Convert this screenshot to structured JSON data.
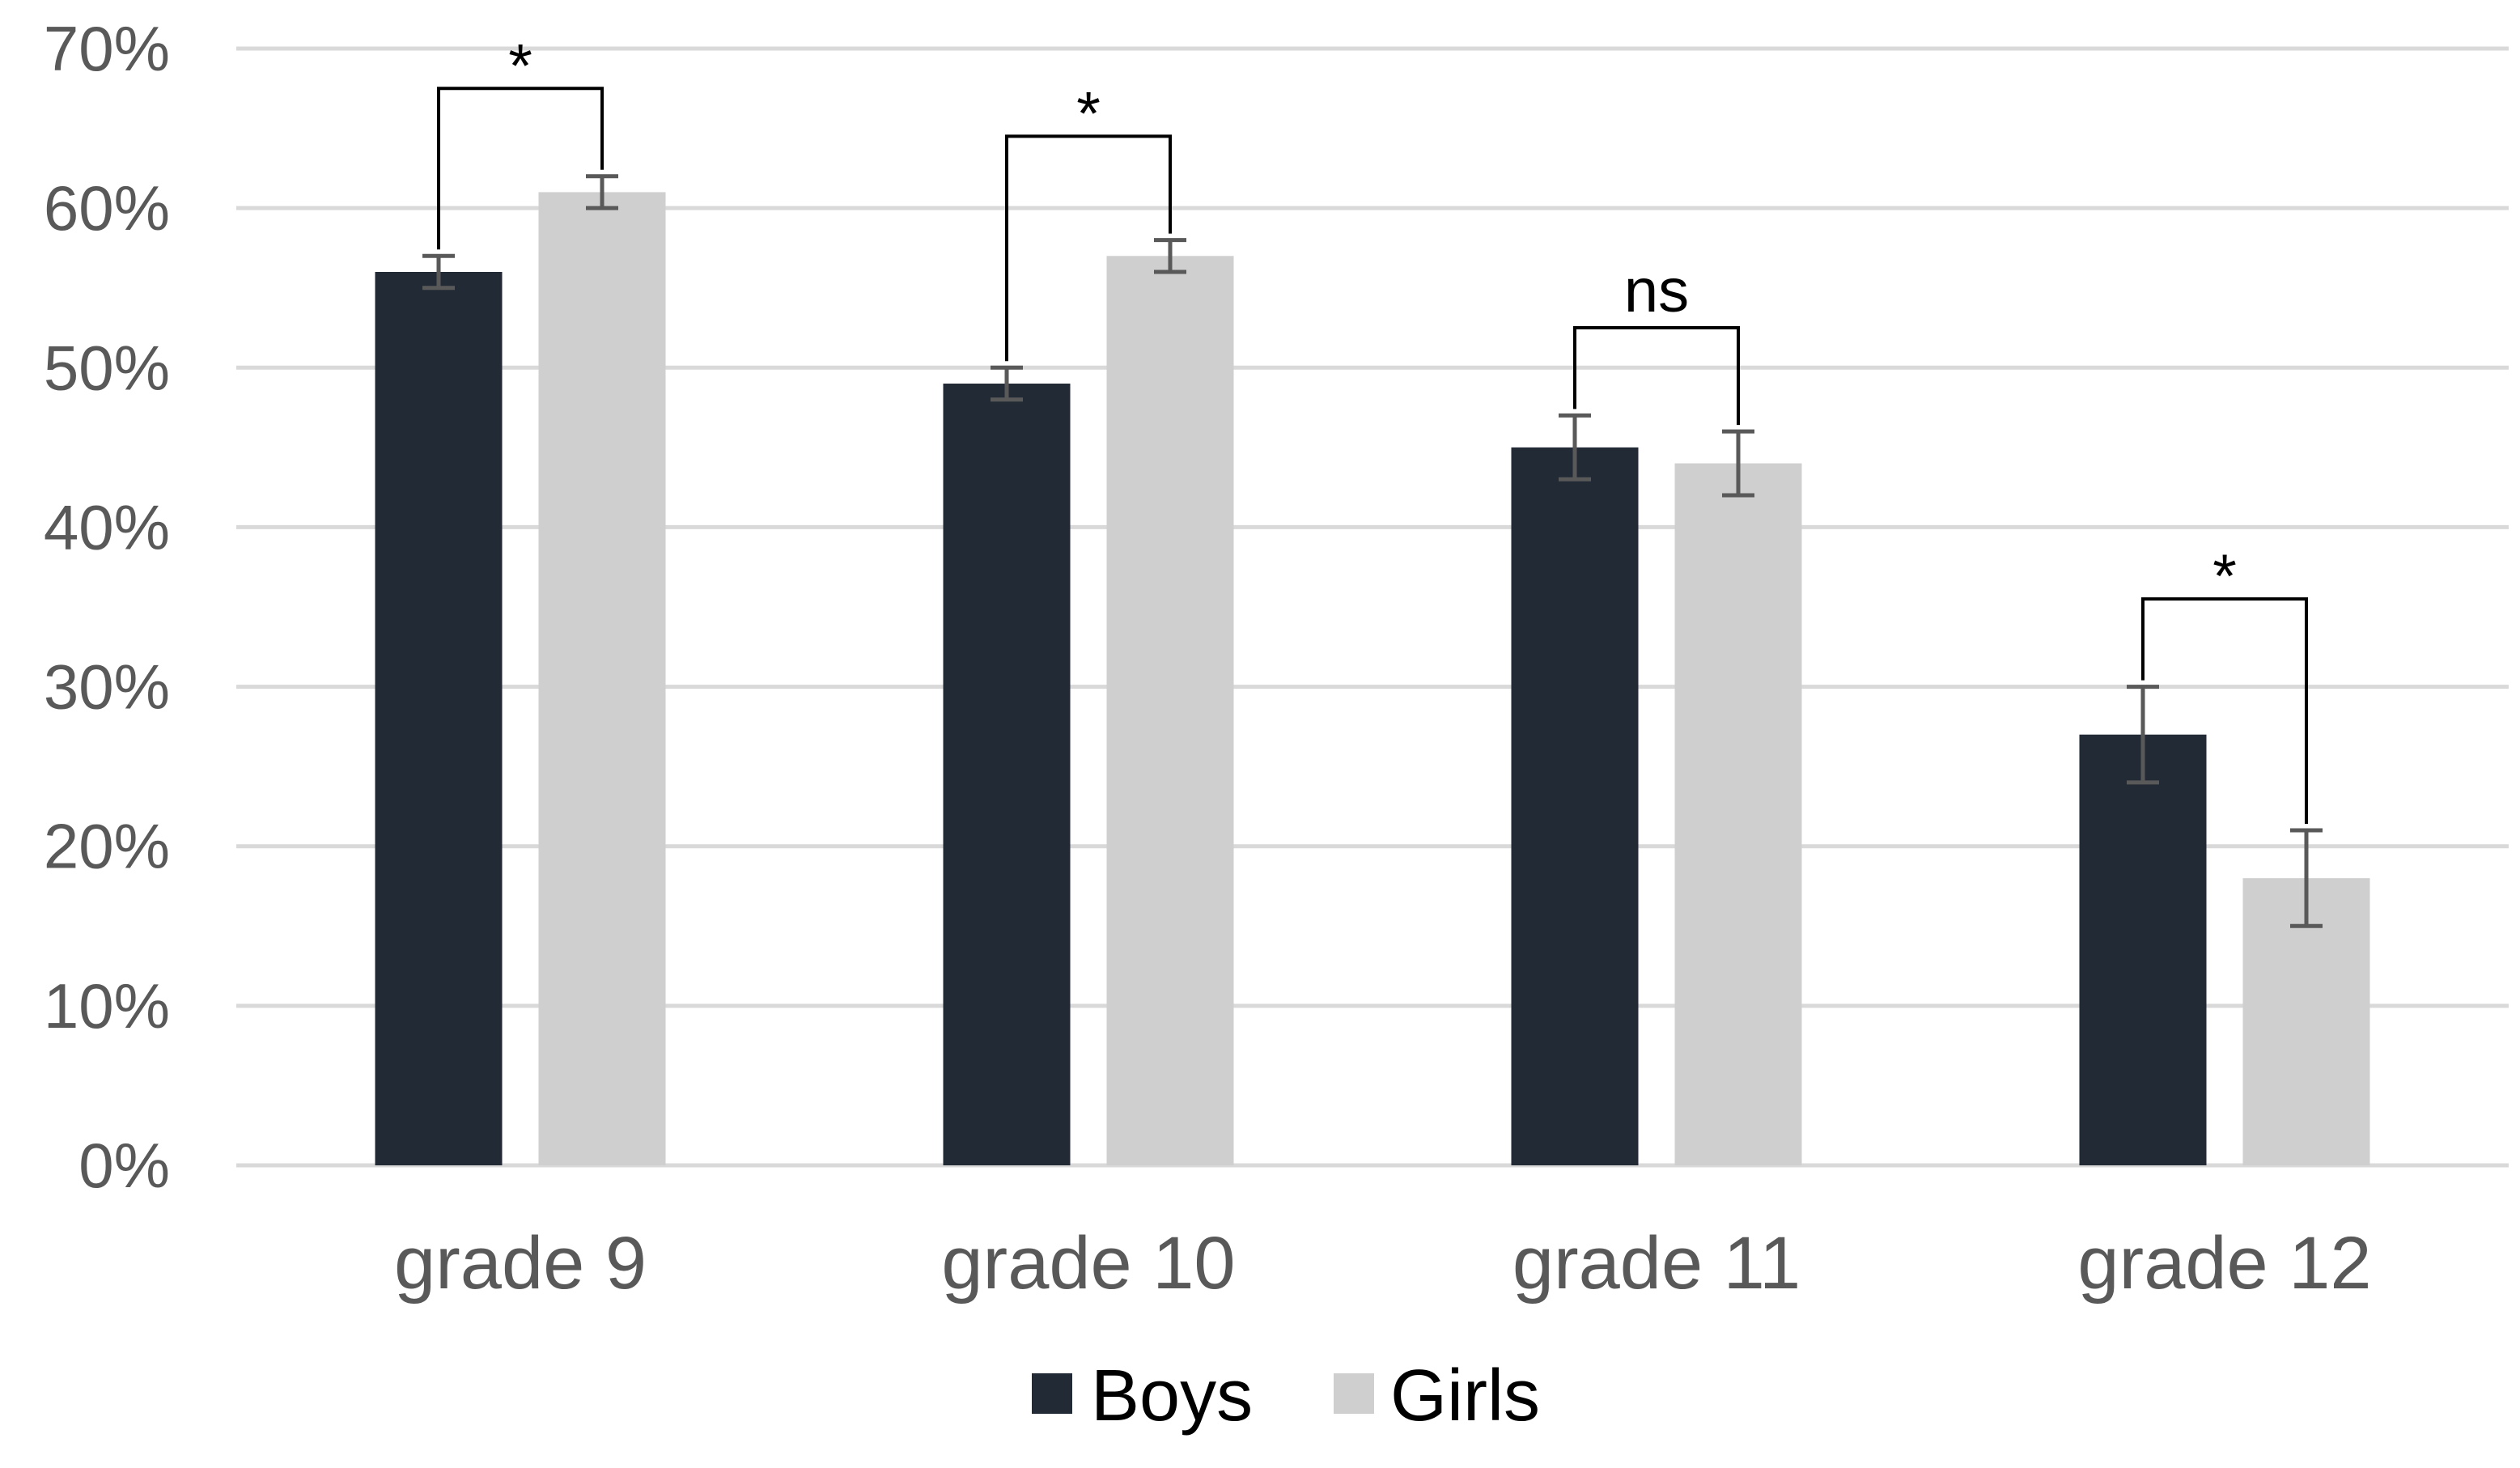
{
  "chart_data": {
    "type": "bar",
    "title": "",
    "xlabel": "",
    "ylabel": "",
    "ylim": [
      0,
      0.7
    ],
    "yticks": [
      0,
      0.1,
      0.2,
      0.3,
      0.4,
      0.5,
      0.6,
      0.7
    ],
    "ytick_labels": [
      "0%",
      "10%",
      "20%",
      "30%",
      "40%",
      "50%",
      "60%",
      "70%"
    ],
    "categories": [
      "grade 9",
      "grade 10",
      "grade 11",
      "grade 12"
    ],
    "series": [
      {
        "name": "Boys",
        "color": "#222a36",
        "values": [
          0.56,
          0.49,
          0.45,
          0.27
        ],
        "errors": [
          0.01,
          0.01,
          0.02,
          0.03
        ]
      },
      {
        "name": "Girls",
        "color": "#d0cfcf",
        "values": [
          0.61,
          0.57,
          0.44,
          0.18
        ],
        "errors": [
          0.01,
          0.01,
          0.02,
          0.03
        ]
      }
    ],
    "significance": [
      {
        "category": "grade 9",
        "label": "*",
        "level": 0.675
      },
      {
        "category": "grade 10",
        "label": "*",
        "level": 0.645
      },
      {
        "category": "grade 11",
        "label": "ns",
        "level": 0.525
      },
      {
        "category": "grade 12",
        "label": "*",
        "level": 0.355
      }
    ],
    "grid": true,
    "legend_position": "bottom-center"
  }
}
